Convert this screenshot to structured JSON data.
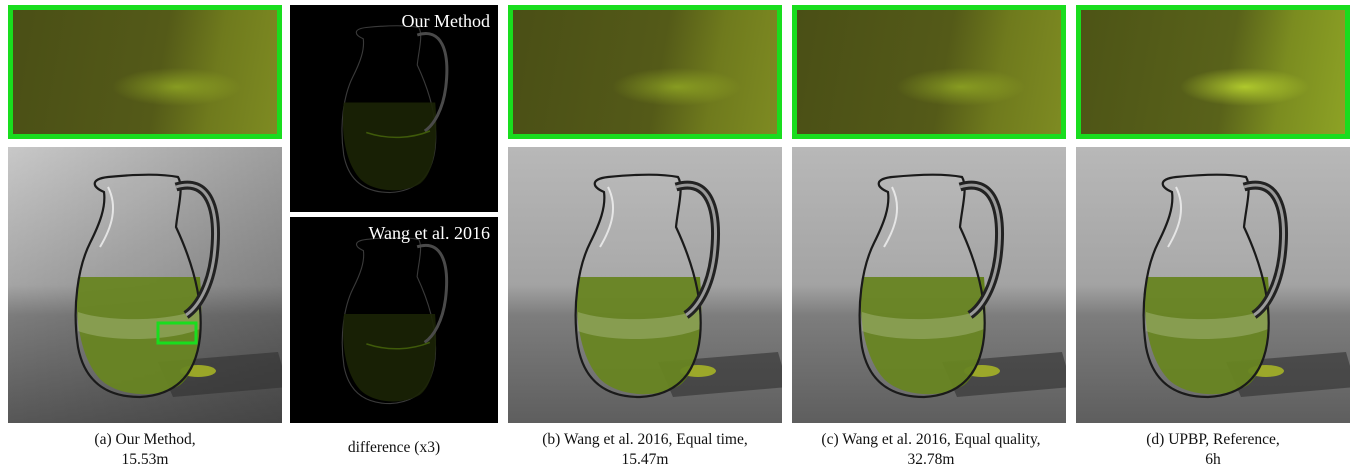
{
  "figure": {
    "panels": [
      {
        "id": "a",
        "caption_line1": "(a) Our Method,",
        "caption_line2": "15.53m"
      },
      {
        "id": "diff",
        "caption_line1": "difference (x3)",
        "caption_line2": ""
      },
      {
        "id": "b",
        "caption_line1": "(b) Wang et al. 2016, Equal time,",
        "caption_line2": "15.47m"
      },
      {
        "id": "c",
        "caption_line1": "(c) Wang et al. 2016, Equal quality,",
        "caption_line2": "32.78m"
      },
      {
        "id": "d",
        "caption_line1": "(d) UPBP, Reference,",
        "caption_line2": "6h"
      }
    ],
    "difference_labels": {
      "top": "Our Method",
      "bottom": "Wang et al. 2016"
    },
    "colors": {
      "crop_border": "#19dd1e",
      "liquid": "#6b8a12",
      "difference_background": "#000000"
    }
  }
}
